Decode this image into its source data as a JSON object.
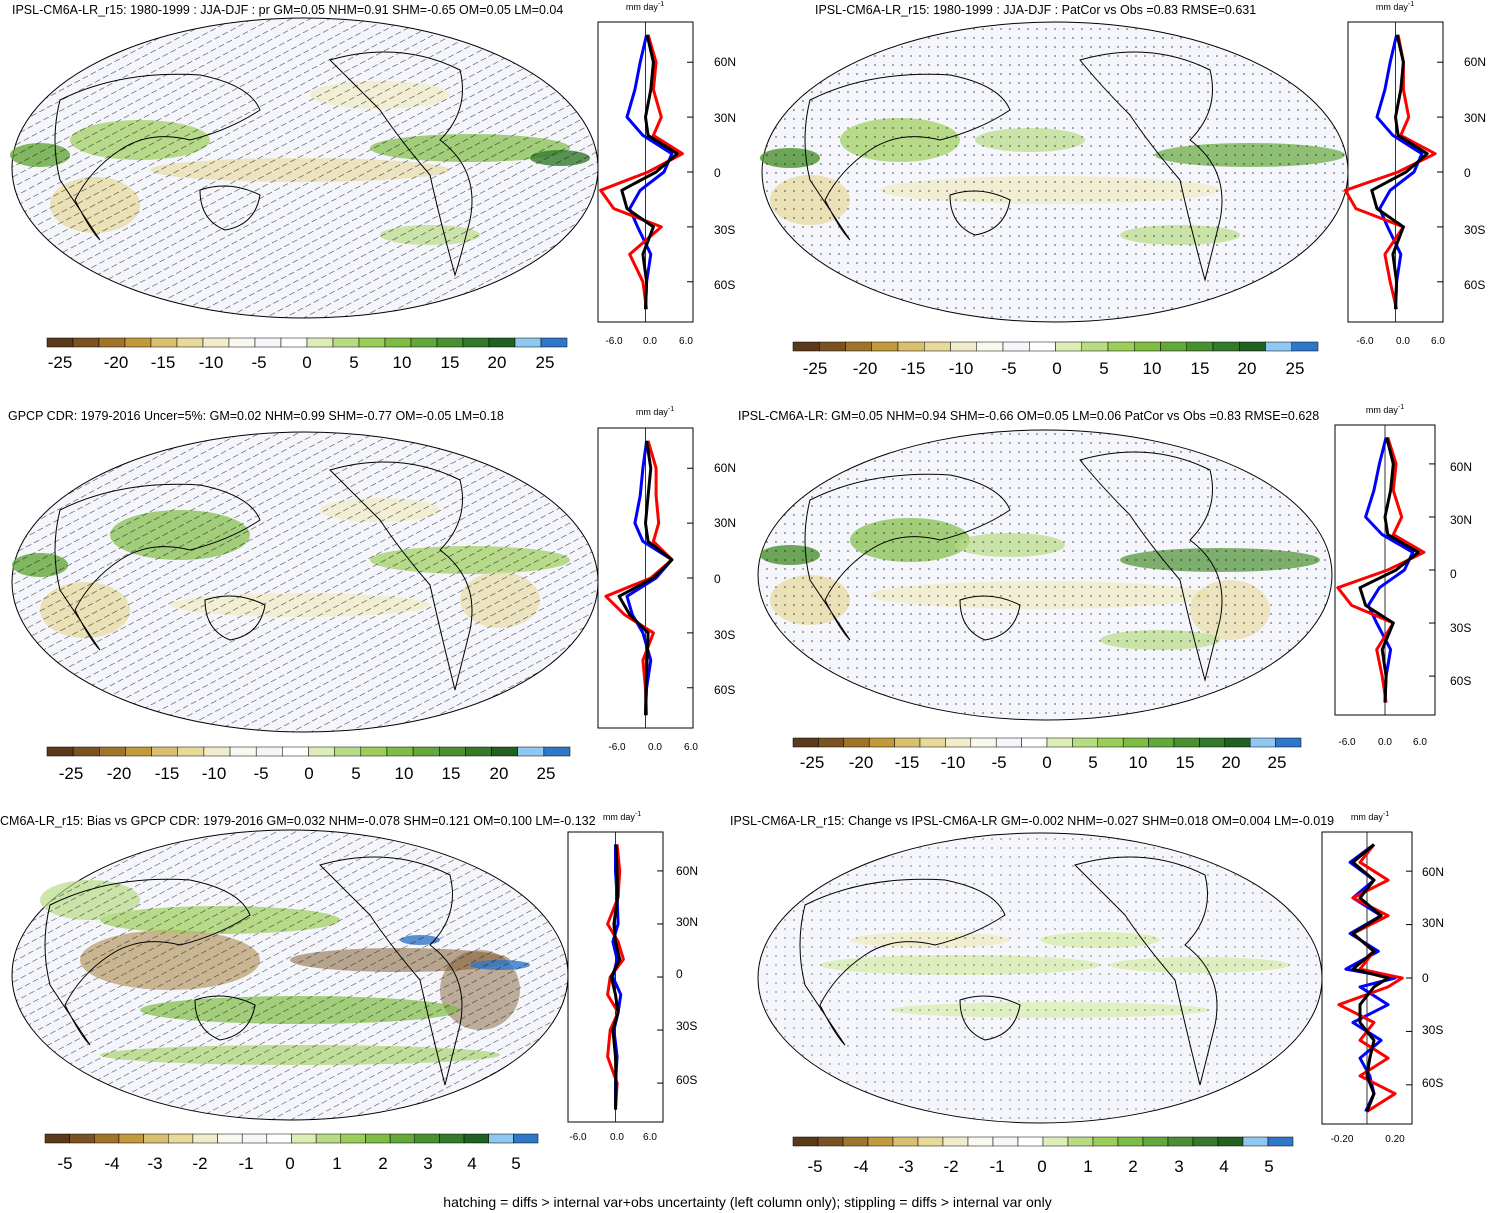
{
  "colors": {
    "brown_to_blue_scale": [
      "#5a3a1a",
      "#7a5224",
      "#a0742a",
      "#c19a3c",
      "#d8c070",
      "#e6d99a",
      "#f1eccb",
      "#f8f8ee",
      "#f5f5fa",
      "#ffffff",
      "#dcedb8",
      "#b8dc84",
      "#9ccd5a",
      "#7fbc44",
      "#63a83a",
      "#4a9030",
      "#347a2a",
      "#226022",
      "#8ec8f0",
      "#2f78c8"
    ],
    "ocean": "#f5f6fb",
    "profile_model": "#0000ff",
    "profile_obs": "#ff0000",
    "profile_diff": "#000000"
  },
  "footnote": "hatching = diffs > internal var+obs uncertainty (left column only); stippling = diffs > internal var only",
  "chart_data": [
    {
      "type": "heatmap",
      "title": "IPSL-CM6A-LR_r15: 1980-1999 : JJA-DJF : pr GM=0.05 NHM=0.91 SHM=-0.65 OM=0.05 LM=0.04",
      "colorbar_ticks": [
        "-25",
        "-20",
        "-15",
        "-10",
        "-5",
        "0",
        "5",
        "10",
        "15",
        "20",
        "25"
      ],
      "profile": {
        "unit": "mm day",
        "unit_sup": "-1",
        "ylabels": [
          "60N",
          "30N",
          "0",
          "30S",
          "60S"
        ],
        "xticks": [
          "-6.0",
          "0.0",
          "6.0"
        ],
        "xlim": [
          -9,
          9
        ],
        "lat": [
          -75,
          -60,
          -45,
          -30,
          -20,
          -10,
          0,
          10,
          20,
          30,
          45,
          60,
          75
        ],
        "series": [
          {
            "color": "blue",
            "values": [
              0.0,
              0.2,
              1.0,
              -1.5,
              -3.0,
              -1.0,
              3.5,
              5.0,
              -0.5,
              -3.5,
              -2.0,
              -1.0,
              0.2
            ]
          },
          {
            "color": "red",
            "values": [
              0.2,
              -0.5,
              -3.0,
              3.0,
              -6.0,
              -8.5,
              0.5,
              7.0,
              1.5,
              3.0,
              1.5,
              2.0,
              0.5
            ]
          },
          {
            "color": "black",
            "values": [
              0.0,
              0.2,
              -0.5,
              1.5,
              -3.5,
              -4.5,
              2.0,
              6.0,
              0.5,
              0.0,
              1.0,
              1.5,
              0.3
            ]
          }
        ]
      }
    },
    {
      "type": "heatmap",
      "title": "IPSL-CM6A-LR_r15: 1980-1999 : JJA-DJF : PatCor vs Obs =0.83 RMSE=0.631",
      "colorbar_ticks": [
        "-25",
        "-20",
        "-15",
        "-10",
        "-5",
        "0",
        "5",
        "10",
        "15",
        "20",
        "25"
      ],
      "profile": {
        "unit": "mm day",
        "unit_sup": "-1",
        "ylabels": [
          "60N",
          "30N",
          "0",
          "30S",
          "60S"
        ],
        "xticks": [
          "-6.0",
          "0.0",
          "6.0"
        ],
        "xlim": [
          -9,
          9
        ],
        "lat": [
          -75,
          -60,
          -45,
          -30,
          -20,
          -10,
          0,
          10,
          20,
          30,
          45,
          60,
          75
        ],
        "series": [
          {
            "color": "blue",
            "values": [
              0.0,
              0.2,
              1.0,
              -1.5,
              -3.0,
              -1.0,
              3.5,
              5.0,
              -0.5,
              -3.5,
              -2.0,
              -1.0,
              0.2
            ]
          },
          {
            "color": "red",
            "values": [
              0.2,
              -1.0,
              -2.0,
              1.5,
              -7.5,
              -9.5,
              0.5,
              7.5,
              1.0,
              2.5,
              1.5,
              1.5,
              0.5
            ]
          },
          {
            "color": "black",
            "values": [
              0.0,
              0.2,
              -0.5,
              1.5,
              -3.5,
              -4.5,
              2.0,
              6.0,
              0.5,
              0.0,
              1.0,
              1.5,
              0.3
            ]
          }
        ]
      }
    },
    {
      "type": "heatmap",
      "title": "GPCP CDR: 1979-2016 Uncer=5%: GM=0.02 NHM=0.99 SHM=-0.77 OM=-0.05 LM=0.18",
      "colorbar_ticks": [
        "-25",
        "-20",
        "-15",
        "-10",
        "-5",
        "0",
        "5",
        "10",
        "15",
        "20",
        "25"
      ],
      "profile": {
        "unit": "mm day",
        "unit_sup": "-1",
        "ylabels": [
          "60N",
          "30N",
          "0",
          "30S",
          "60S"
        ],
        "xticks": [
          "-6.0",
          "0.0",
          "6.0"
        ],
        "xlim": [
          -9,
          9
        ],
        "lat": [
          -75,
          -60,
          -45,
          -30,
          -20,
          -10,
          0,
          10,
          20,
          30,
          45,
          60,
          75
        ],
        "series": [
          {
            "color": "blue",
            "values": [
              0.0,
              0.2,
              1.0,
              -0.5,
              -2.5,
              -3.5,
              2.0,
              5.0,
              -0.5,
              -2.0,
              -1.0,
              -0.5,
              0.2
            ]
          },
          {
            "color": "red",
            "values": [
              0.2,
              0.0,
              -0.5,
              1.5,
              -4.0,
              -7.5,
              1.0,
              5.0,
              1.5,
              2.5,
              2.0,
              2.0,
              0.5
            ]
          },
          {
            "color": "black",
            "values": [
              0.0,
              0.1,
              0.3,
              0.5,
              -3.0,
              -5.0,
              1.5,
              5.0,
              0.5,
              0.0,
              0.5,
              1.0,
              0.2
            ]
          }
        ]
      }
    },
    {
      "type": "heatmap",
      "title": "IPSL-CM6A-LR: GM=0.05 NHM=0.94 SHM=-0.66 OM=0.05 LM=0.06 PatCor vs Obs =0.83 RMSE=0.628",
      "colorbar_ticks": [
        "-25",
        "-20",
        "-15",
        "-10",
        "-5",
        "0",
        "5",
        "10",
        "15",
        "20",
        "25"
      ],
      "profile": {
        "unit": "mm day",
        "unit_sup": "-1",
        "ylabels": [
          "60N",
          "30N",
          "0",
          "30S",
          "60S"
        ],
        "xticks": [
          "-6.0",
          "0.0",
          "6.0"
        ],
        "xlim": [
          -9,
          9
        ],
        "lat": [
          -75,
          -60,
          -45,
          -30,
          -20,
          -10,
          0,
          10,
          20,
          30,
          45,
          60,
          75
        ],
        "series": [
          {
            "color": "blue",
            "values": [
              0.0,
              0.2,
              1.0,
              -1.5,
              -3.0,
              -1.0,
              3.5,
              5.0,
              -0.5,
              -3.5,
              -2.0,
              -1.0,
              0.2
            ]
          },
          {
            "color": "red",
            "values": [
              0.2,
              -0.5,
              -1.5,
              1.5,
              -6.0,
              -8.5,
              0.5,
              7.0,
              1.5,
              3.0,
              1.5,
              2.0,
              0.5
            ]
          },
          {
            "color": "black",
            "values": [
              0.0,
              0.2,
              -0.5,
              1.5,
              -3.5,
              -4.5,
              2.0,
              6.0,
              0.5,
              0.0,
              1.0,
              1.5,
              0.3
            ]
          }
        ]
      }
    },
    {
      "type": "heatmap",
      "title": "CM6A-LR_r15: Bias vs GPCP CDR: 1979-2016 GM=0.032 NHM=-0.078 SHM=0.121 OM=0.100 LM=-0.132",
      "colorbar_ticks": [
        "-5",
        "-4",
        "-3",
        "-2",
        "-1",
        "0",
        "1",
        "2",
        "3",
        "4",
        "5"
      ],
      "profile": {
        "unit": "mm day",
        "unit_sup": "-1",
        "ylabels": [
          "60N",
          "30N",
          "0",
          "30S",
          "60S"
        ],
        "xticks": [
          "-6.0",
          "0.0",
          "6.0"
        ],
        "xlim": [
          -9,
          9
        ],
        "lat": [
          -75,
          -60,
          -45,
          -30,
          -20,
          -10,
          0,
          10,
          20,
          30,
          45,
          60,
          75
        ],
        "series": [
          {
            "color": "blue",
            "values": [
              0.0,
              0.0,
              0.3,
              -0.3,
              0.5,
              1.0,
              -0.5,
              0.3,
              -0.5,
              0.5,
              0.3,
              0.0,
              0.0
            ]
          },
          {
            "color": "red",
            "values": [
              0.0,
              0.3,
              -1.5,
              -1.0,
              0.5,
              -1.5,
              -1.0,
              1.5,
              0.5,
              -1.5,
              0.5,
              0.8,
              0.3
            ]
          },
          {
            "color": "black",
            "values": [
              0.0,
              0.1,
              0.0,
              -0.5,
              0.5,
              0.0,
              -0.8,
              0.8,
              0.0,
              -0.3,
              0.4,
              0.3,
              0.1
            ]
          }
        ]
      }
    },
    {
      "type": "heatmap",
      "title": "IPSL-CM6A-LR_r15: Change vs IPSL-CM6A-LR GM=-0.002 NHM=-0.027 SHM=0.018 OM=0.004 LM=-0.019",
      "colorbar_ticks": [
        "-5",
        "-4",
        "-3",
        "-2",
        "-1",
        "0",
        "1",
        "2",
        "3",
        "4",
        "5"
      ],
      "profile": {
        "unit": "mm day",
        "unit_sup": "-1",
        "ylabels": [
          "60N",
          "30N",
          "0",
          "30S",
          "60S"
        ],
        "xticks": [
          "-0.20",
          "0.20"
        ],
        "xlim": [
          -0.32,
          0.32
        ],
        "lat": [
          -75,
          -65,
          -55,
          -45,
          -35,
          -25,
          -15,
          -5,
          0,
          5,
          15,
          25,
          35,
          45,
          55,
          65,
          75
        ],
        "series": [
          {
            "color": "blue",
            "values": [
              -0.01,
              0.05,
              0.02,
              -0.05,
              0.1,
              -0.1,
              0.15,
              -0.05,
              0.2,
              -0.15,
              0.08,
              -0.12,
              0.1,
              -0.1,
              0.05,
              -0.12,
              0.05
            ]
          },
          {
            "color": "red",
            "values": [
              0.0,
              0.2,
              -0.05,
              0.15,
              -0.05,
              0.05,
              -0.2,
              0.15,
              0.25,
              -0.05,
              0.05,
              -0.1,
              0.15,
              -0.1,
              0.15,
              -0.05,
              0.05
            ]
          },
          {
            "color": "black",
            "values": [
              0.0,
              0.05,
              0.0,
              0.02,
              0.05,
              -0.05,
              -0.05,
              0.05,
              0.15,
              -0.1,
              0.05,
              -0.1,
              0.1,
              -0.05,
              0.05,
              -0.1,
              0.05
            ]
          }
        ]
      }
    }
  ]
}
